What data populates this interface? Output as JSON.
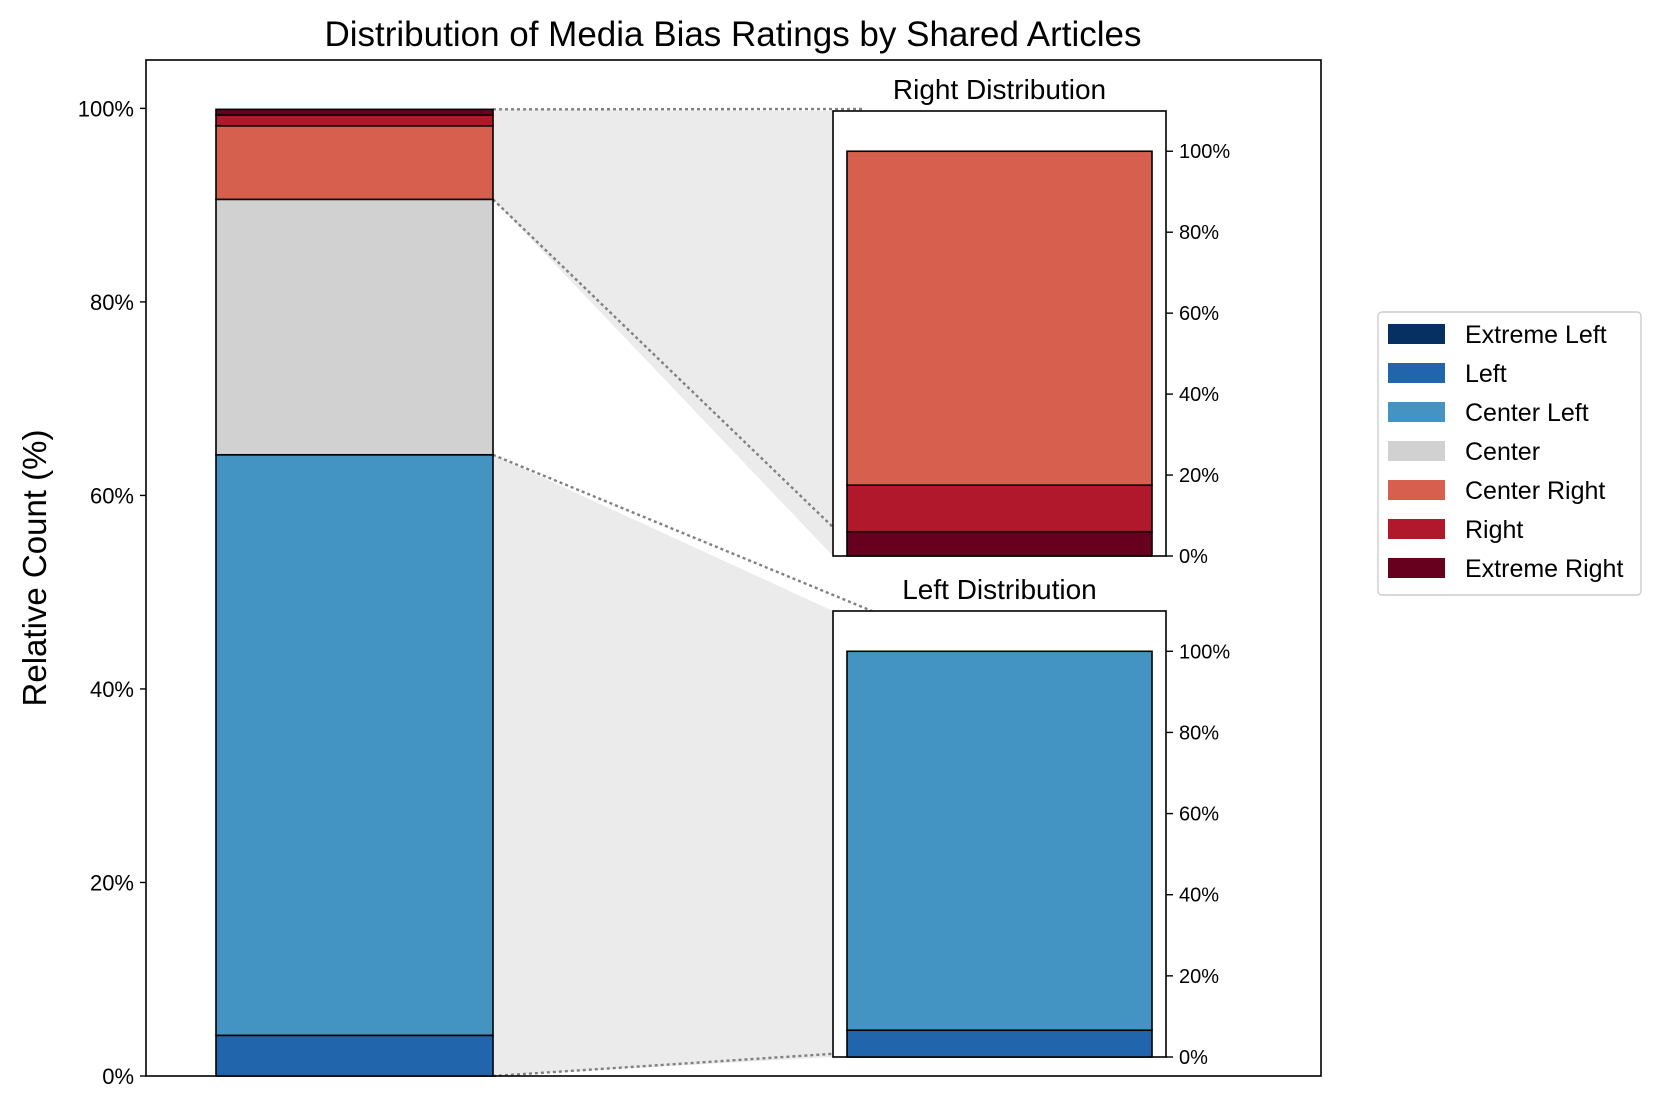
{
  "chart_data": {
    "type": "bar",
    "title": "Distribution of Media Bias Ratings by Shared Articles",
    "xlabel": "",
    "ylabel": "Relative Count (%)",
    "ylim": [
      0,
      105
    ],
    "y_ticks": [
      "0%",
      "20%",
      "40%",
      "60%",
      "80%",
      "100%"
    ],
    "categories": [
      "Extreme Left",
      "Left",
      "Center Left",
      "Center",
      "Center Right",
      "Right",
      "Extreme Right"
    ],
    "colors": {
      "Extreme Left": "#053061",
      "Left": "#2166ac",
      "Center Left": "#4393c3",
      "Center": "#d1d1d1",
      "Center Right": "#d6604d",
      "Right": "#b2182b",
      "Extreme Right": "#67001f"
    },
    "main_bar": [
      {
        "name": "Extreme Left",
        "value": 0.0
      },
      {
        "name": "Left",
        "value": 4.2
      },
      {
        "name": "Center Left",
        "value": 60.0
      },
      {
        "name": "Center",
        "value": 26.4
      },
      {
        "name": "Center Right",
        "value": 7.6
      },
      {
        "name": "Right",
        "value": 1.1
      },
      {
        "name": "Extreme Right",
        "value": 0.6
      }
    ],
    "insets": [
      {
        "title": "Right Distribution",
        "ylim": [
          0,
          105
        ],
        "y_ticks": [
          "0%",
          "20%",
          "40%",
          "60%",
          "80%",
          "100%"
        ],
        "values": [
          {
            "name": "Extreme Right",
            "value": 6.0
          },
          {
            "name": "Right",
            "value": 11.5
          },
          {
            "name": "Center Right",
            "value": 82.5
          }
        ]
      },
      {
        "title": "Left Distribution",
        "ylim": [
          0,
          105
        ],
        "y_ticks": [
          "0%",
          "20%",
          "40%",
          "60%",
          "80%",
          "100%"
        ],
        "values": [
          {
            "name": "Extreme Left",
            "value": 0.0
          },
          {
            "name": "Left",
            "value": 6.6
          },
          {
            "name": "Center Left",
            "value": 93.4
          }
        ]
      }
    ],
    "legend": [
      "Extreme Left",
      "Left",
      "Center Left",
      "Center",
      "Center Right",
      "Right",
      "Extreme Right"
    ],
    "legend_position": "center-right"
  }
}
